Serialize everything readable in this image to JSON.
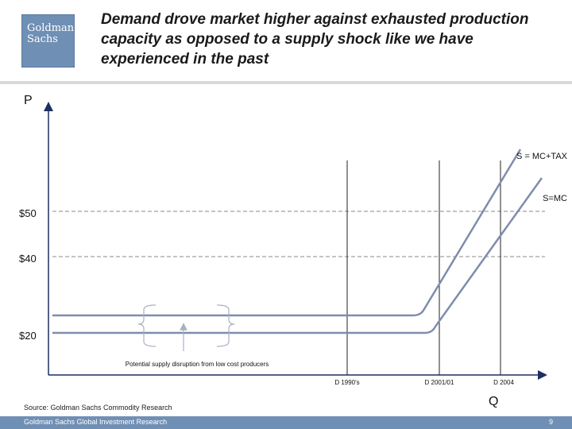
{
  "header": {
    "logo_line1": "Goldman",
    "logo_line2": "Sachs",
    "title": "Demand drove market higher against exhausted production capacity as opposed to a supply shock like we have experienced in the past"
  },
  "diagram": {
    "axis_y_label": "P",
    "axis_x_label": "Q",
    "price_labels": [
      "$50",
      "$40",
      "$20"
    ],
    "curve_labels": {
      "supply_tax": "S = MC+TAX",
      "supply_mc": "S=MC"
    },
    "demand_labels": [
      "D 1990's",
      "D 2001/01",
      "D 2004"
    ],
    "annotation": "Potential supply disruption from low cost producers",
    "colors": {
      "axis": "#1f2f5f",
      "curve": "#7f8cac",
      "dashed": "#8a8a8a",
      "demand": "#222222"
    }
  },
  "source": "Source: Goldman Sachs Commodity Research",
  "footer": {
    "left": "Goldman Sachs Global Investment Research",
    "page": "9"
  }
}
